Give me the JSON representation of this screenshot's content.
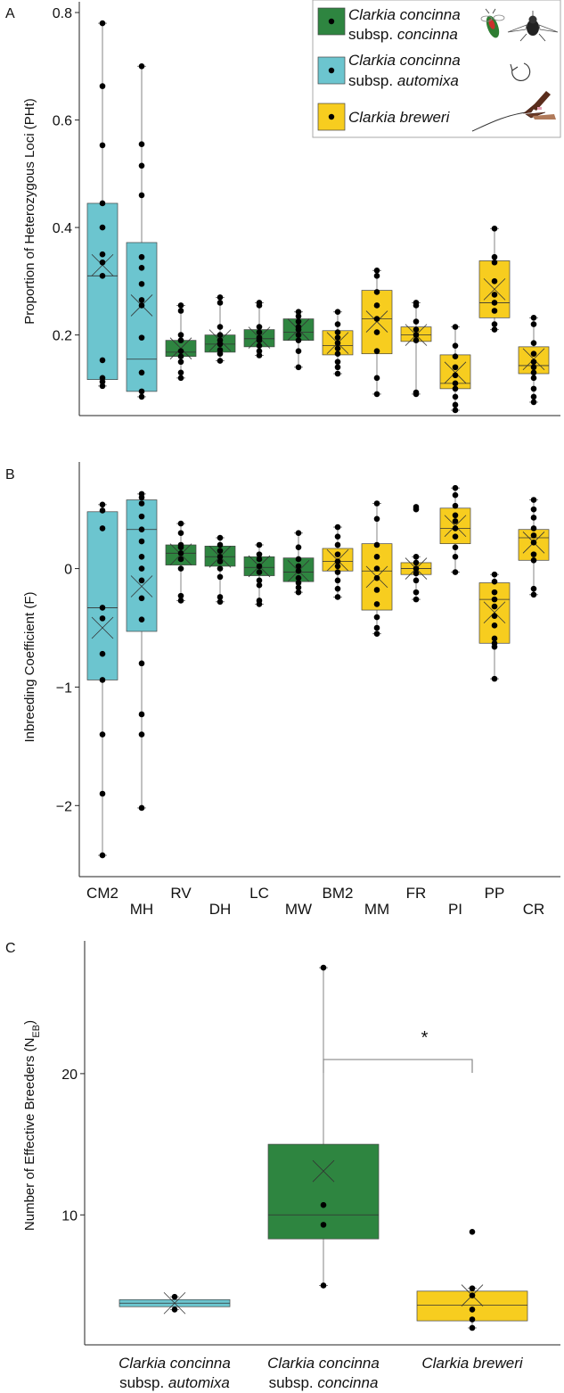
{
  "colors": {
    "automixa": "#6cc5cf",
    "concinna": "#2e8540",
    "breweri": "#f7cd1f"
  },
  "legend": [
    {
      "taxon": "concinna",
      "line1": "Clarkia concinna",
      "line2_prefix": "subsp. ",
      "line2_italic": "concinna",
      "icon": "bee-and-fly-pollinator-icon"
    },
    {
      "taxon": "automixa",
      "line1": "Clarkia concinna",
      "line2_prefix": "subsp. ",
      "line2_italic": "automixa",
      "icon": "self-pollination-arrow-icon"
    },
    {
      "taxon": "breweri",
      "line1": "Clarkia breweri",
      "line2_prefix": "",
      "line2_italic": "",
      "icon": "hawkmoth-pollinator-icon"
    }
  ],
  "chart_data": [
    {
      "panel": "A",
      "type": "box",
      "ylabel": "Proportion of Heterozygous Loci (PHt)",
      "yticks": [
        0.2,
        0.4,
        0.6,
        0.8
      ],
      "ylim": [
        0.05,
        0.82
      ],
      "categories": [
        "CM2",
        "MH",
        "RV",
        "DH",
        "LC",
        "MW",
        "BM2",
        "MM",
        "FR",
        "PI",
        "PP",
        "CR"
      ],
      "taxa": [
        "automixa",
        "automixa",
        "concinna",
        "concinna",
        "concinna",
        "concinna",
        "breweri",
        "breweri",
        "breweri",
        "breweri",
        "breweri",
        "breweri"
      ],
      "boxes": [
        {
          "q1": 0.117,
          "median": 0.31,
          "q3": 0.445,
          "mean": 0.33,
          "whisker_low": 0.105,
          "whisker_high": 0.78,
          "points": [
            0.78,
            0.663,
            0.553,
            0.445,
            0.4,
            0.35,
            0.335,
            0.31,
            0.153,
            0.12,
            0.113,
            0.105
          ]
        },
        {
          "q1": 0.095,
          "median": 0.155,
          "q3": 0.372,
          "mean": 0.255,
          "whisker_low": 0.085,
          "whisker_high": 0.7,
          "points": [
            0.7,
            0.555,
            0.515,
            0.46,
            0.345,
            0.325,
            0.295,
            0.265,
            0.255,
            0.195,
            0.13,
            0.095,
            0.085
          ]
        },
        {
          "q1": 0.16,
          "median": 0.168,
          "q3": 0.19,
          "mean": 0.175,
          "whisker_low": 0.12,
          "whisker_high": 0.255,
          "points": [
            0.255,
            0.245,
            0.2,
            0.19,
            0.17,
            0.16,
            0.15,
            0.13,
            0.12
          ]
        },
        {
          "q1": 0.168,
          "median": 0.183,
          "q3": 0.2,
          "mean": 0.19,
          "whisker_low": 0.152,
          "whisker_high": 0.27,
          "points": [
            0.27,
            0.26,
            0.215,
            0.2,
            0.19,
            0.183,
            0.172,
            0.165,
            0.152
          ]
        },
        {
          "q1": 0.178,
          "median": 0.193,
          "q3": 0.21,
          "mean": 0.195,
          "whisker_low": 0.162,
          "whisker_high": 0.26,
          "points": [
            0.26,
            0.255,
            0.215,
            0.205,
            0.195,
            0.19,
            0.18,
            0.17,
            0.162
          ]
        },
        {
          "q1": 0.19,
          "median": 0.205,
          "q3": 0.23,
          "mean": 0.21,
          "whisker_low": 0.14,
          "whisker_high": 0.243,
          "points": [
            0.243,
            0.235,
            0.225,
            0.215,
            0.21,
            0.2,
            0.19,
            0.17,
            0.14
          ]
        },
        {
          "q1": 0.163,
          "median": 0.18,
          "q3": 0.208,
          "mean": 0.185,
          "whisker_low": 0.128,
          "whisker_high": 0.243,
          "points": [
            0.243,
            0.22,
            0.205,
            0.195,
            0.185,
            0.175,
            0.165,
            0.15,
            0.14,
            0.128
          ]
        },
        {
          "q1": 0.165,
          "median": 0.23,
          "q3": 0.283,
          "mean": 0.225,
          "whisker_low": 0.09,
          "whisker_high": 0.32,
          "points": [
            0.32,
            0.31,
            0.28,
            0.255,
            0.23,
            0.205,
            0.17,
            0.12,
            0.09
          ]
        },
        {
          "q1": 0.188,
          "median": 0.2,
          "q3": 0.215,
          "mean": 0.2,
          "whisker_low": 0.09,
          "whisker_high": 0.26,
          "points": [
            0.26,
            0.255,
            0.225,
            0.21,
            0.2,
            0.19,
            0.093,
            0.09
          ]
        },
        {
          "q1": 0.1,
          "median": 0.11,
          "q3": 0.163,
          "mean": 0.13,
          "whisker_low": 0.06,
          "whisker_high": 0.215,
          "points": [
            0.215,
            0.18,
            0.16,
            0.14,
            0.125,
            0.11,
            0.1,
            0.085,
            0.07,
            0.06
          ]
        },
        {
          "q1": 0.232,
          "median": 0.26,
          "q3": 0.338,
          "mean": 0.285,
          "whisker_low": 0.21,
          "whisker_high": 0.398,
          "points": [
            0.398,
            0.345,
            0.335,
            0.3,
            0.275,
            0.26,
            0.245,
            0.22,
            0.21
          ]
        },
        {
          "q1": 0.128,
          "median": 0.143,
          "q3": 0.178,
          "mean": 0.155,
          "whisker_low": 0.075,
          "whisker_high": 0.232,
          "points": [
            0.232,
            0.22,
            0.185,
            0.165,
            0.15,
            0.14,
            0.13,
            0.12,
            0.1,
            0.085,
            0.075
          ]
        }
      ]
    },
    {
      "panel": "B",
      "type": "box",
      "ylabel": "Inbreeding Coefficient (F)",
      "yticks": [
        -2,
        -1,
        0
      ],
      "ytick_labels": [
        "−2",
        "−1",
        "0"
      ],
      "ylim": [
        -2.6,
        0.9
      ],
      "categories": [
        "CM2",
        "MH",
        "RV",
        "DH",
        "LC",
        "MW",
        "BM2",
        "MM",
        "FR",
        "PI",
        "PP",
        "CR"
      ],
      "taxa": [
        "automixa",
        "automixa",
        "concinna",
        "concinna",
        "concinna",
        "concinna",
        "breweri",
        "breweri",
        "breweri",
        "breweri",
        "breweri",
        "breweri"
      ],
      "boxes": [
        {
          "q1": -0.94,
          "median": -0.33,
          "q3": 0.48,
          "mean": -0.5,
          "whisker_low": -2.42,
          "whisker_high": 0.54,
          "points": [
            0.54,
            0.49,
            0.34,
            -0.33,
            -0.42,
            -0.72,
            -0.94,
            -1.4,
            -1.9,
            -2.42
          ]
        },
        {
          "q1": -0.53,
          "median": 0.33,
          "q3": 0.58,
          "mean": -0.15,
          "whisker_low": -2.02,
          "whisker_high": 0.63,
          "points": [
            0.63,
            0.6,
            0.55,
            0.44,
            0.33,
            0.23,
            0.1,
            0.0,
            -0.1,
            -0.25,
            -0.43,
            -0.8,
            -1.23,
            -1.4,
            -2.02
          ]
        },
        {
          "q1": 0.03,
          "median": 0.13,
          "q3": 0.2,
          "mean": 0.12,
          "whisker_low": -0.27,
          "whisker_high": 0.38,
          "points": [
            0.38,
            0.3,
            0.2,
            0.18,
            0.13,
            0.08,
            0.0,
            -0.23,
            -0.27
          ]
        },
        {
          "q1": 0.02,
          "median": 0.1,
          "q3": 0.19,
          "mean": 0.1,
          "whisker_low": -0.28,
          "whisker_high": 0.26,
          "points": [
            0.26,
            0.2,
            0.15,
            0.1,
            0.06,
            0.0,
            -0.07,
            -0.24,
            -0.28
          ]
        },
        {
          "q1": -0.06,
          "median": 0.01,
          "q3": 0.1,
          "mean": 0.02,
          "whisker_low": -0.3,
          "whisker_high": 0.2,
          "points": [
            0.2,
            0.12,
            0.08,
            0.02,
            -0.03,
            -0.1,
            -0.14,
            -0.27,
            -0.3
          ]
        },
        {
          "q1": -0.11,
          "median": -0.03,
          "q3": 0.09,
          "mean": -0.02,
          "whisker_low": -0.2,
          "whisker_high": 0.3,
          "points": [
            0.3,
            0.18,
            0.08,
            0.02,
            -0.02,
            -0.08,
            -0.12,
            -0.16,
            -0.2
          ]
        },
        {
          "q1": -0.02,
          "median": 0.06,
          "q3": 0.17,
          "mean": 0.07,
          "whisker_low": -0.24,
          "whisker_high": 0.35,
          "points": [
            0.35,
            0.27,
            0.2,
            0.12,
            0.06,
            0.02,
            -0.03,
            -0.1,
            -0.17,
            -0.24
          ]
        },
        {
          "q1": -0.35,
          "median": -0.02,
          "q3": 0.21,
          "mean": -0.07,
          "whisker_low": -0.55,
          "whisker_high": 0.55,
          "points": [
            0.55,
            0.42,
            0.2,
            0.1,
            0.0,
            -0.08,
            -0.18,
            -0.3,
            -0.41,
            -0.5,
            -0.55
          ]
        },
        {
          "q1": -0.05,
          "median": 0.0,
          "q3": 0.05,
          "mean": 0.0,
          "whisker_low": -0.26,
          "whisker_high": 0.1,
          "points": [
            0.52,
            0.5,
            0.1,
            0.05,
            0.0,
            -0.04,
            -0.1,
            -0.2,
            -0.26
          ]
        },
        {
          "q1": 0.21,
          "median": 0.34,
          "q3": 0.51,
          "mean": 0.36,
          "whisker_low": -0.03,
          "whisker_high": 0.68,
          "points": [
            0.68,
            0.62,
            0.53,
            0.45,
            0.4,
            0.34,
            0.27,
            0.18,
            0.1,
            -0.03
          ]
        },
        {
          "q1": -0.63,
          "median": -0.26,
          "q3": -0.12,
          "mean": -0.37,
          "whisker_low": -0.93,
          "whisker_high": -0.05,
          "points": [
            -0.05,
            -0.11,
            -0.2,
            -0.26,
            -0.32,
            -0.4,
            -0.48,
            -0.59,
            -0.63,
            -0.66,
            -0.93
          ]
        },
        {
          "q1": 0.07,
          "median": 0.26,
          "q3": 0.33,
          "mean": 0.22,
          "whisker_low": -0.22,
          "whisker_high": 0.58,
          "points": [
            0.58,
            0.5,
            0.43,
            0.34,
            0.28,
            0.22,
            0.12,
            0.07,
            -0.17,
            -0.22
          ]
        }
      ]
    },
    {
      "panel": "C",
      "type": "box",
      "ylabel_main": "Number of Effective Breeders (N",
      "ylabel_sub": "EB",
      "ylabel_end": ")",
      "yticks": [
        10,
        20
      ],
      "ylim": [
        0.8,
        29.4
      ],
      "groups": [
        {
          "taxon": "automixa",
          "label1": "Clarkia concinna",
          "label2_prefix": "subsp. ",
          "label2_italic": "automixa",
          "q1": 3.5,
          "median": 3.75,
          "q3": 4.0,
          "mean": 3.75,
          "whisker_low": 3.3,
          "whisker_high": 4.2,
          "points": [
            4.2,
            3.3
          ]
        },
        {
          "taxon": "concinna",
          "label1": "Clarkia concinna",
          "label2_prefix": "subsp. ",
          "label2_italic": "concinna",
          "q1": 8.3,
          "median": 10.0,
          "q3": 15.0,
          "mean": 13.1,
          "whisker_low": 5.0,
          "whisker_high": 27.5,
          "points": [
            27.5,
            10.7,
            9.3,
            5.0
          ]
        },
        {
          "taxon": "breweri",
          "label1": "Clarkia breweri",
          "label2_prefix": "",
          "label2_italic": "",
          "q1": 2.5,
          "median": 3.6,
          "q3": 4.6,
          "mean": 4.3,
          "whisker_low": 2.0,
          "whisker_high": 4.8,
          "points": [
            8.8,
            4.8,
            4.3,
            3.3,
            2.6,
            2.0
          ]
        }
      ],
      "significance": {
        "label": "*",
        "from_group": 1,
        "to_group": 2,
        "y": 21.0
      }
    }
  ]
}
